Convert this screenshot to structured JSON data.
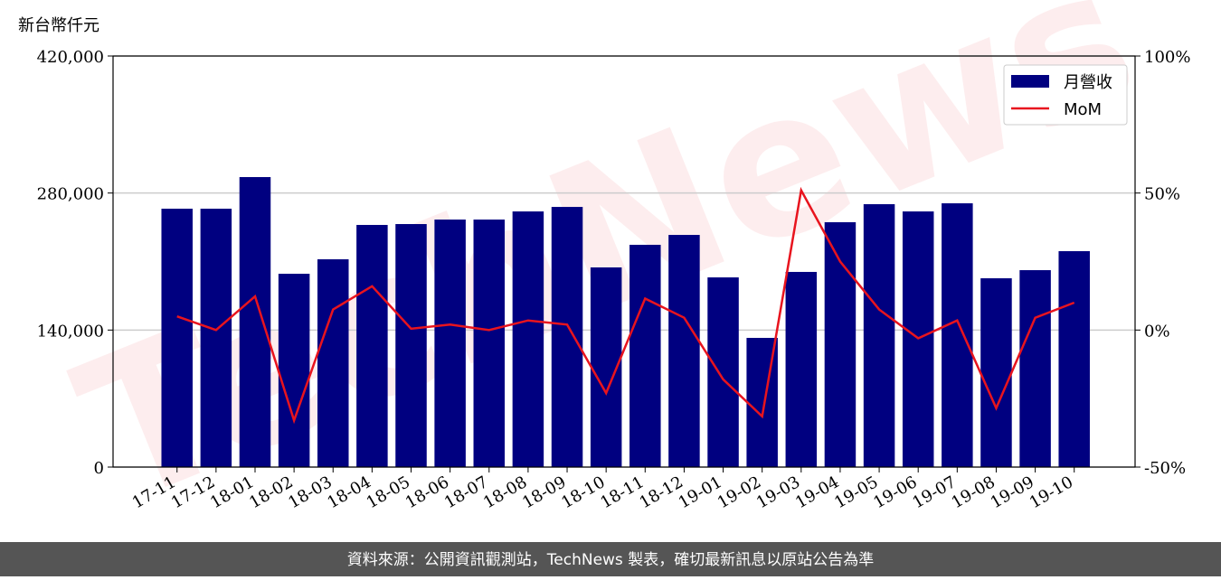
{
  "chart_data": {
    "type": "bar",
    "y_label": "新台幣仟元",
    "footer": "資料來源：公開資訊觀測站，TechNews 製表，確切最新訊息以原站公告為準",
    "watermark": "TechNews",
    "categories": [
      "17-11",
      "17-12",
      "18-01",
      "18-02",
      "18-03",
      "18-04",
      "18-05",
      "18-06",
      "18-07",
      "18-08",
      "18-09",
      "18-10",
      "18-11",
      "18-12",
      "19-01",
      "19-02",
      "19-03",
      "19-04",
      "19-05",
      "19-06",
      "19-07",
      "19-08",
      "19-09",
      "19-10"
    ],
    "series": [
      {
        "name": "月營收",
        "type": "bar",
        "axis": "y",
        "color": "#000080",
        "values": [
          264000,
          264000,
          296300,
          197500,
          212300,
          247400,
          248300,
          252900,
          252900,
          261200,
          265800,
          204000,
          227100,
          237200,
          193800,
          132000,
          199400,
          250200,
          268600,
          261200,
          269500,
          192900,
          201200,
          220600
        ]
      },
      {
        "name": "MoM",
        "type": "line",
        "axis": "y2",
        "color": "#e8141e",
        "values": [
          5,
          0,
          12.3,
          -33,
          7.5,
          16,
          0.5,
          2,
          0,
          3.5,
          2,
          -23,
          11.5,
          4.5,
          -18,
          -31.5,
          51,
          25,
          7.5,
          -3,
          3.5,
          -28.5,
          4.5,
          10
        ]
      }
    ],
    "ylim": [
      0,
      420000
    ],
    "yticks": [
      0,
      {
        "value": 140000,
        "label": "140,000"
      },
      {
        "value": 280000,
        "label": "280,000"
      },
      {
        "value": 420000,
        "label": "420,000"
      }
    ],
    "y2lim": [
      -50,
      100
    ],
    "y2ticks": [
      {
        "value": -50,
        "label": "-50%"
      },
      {
        "value": 0,
        "label": "0%"
      },
      {
        "value": 50,
        "label": "50%"
      },
      {
        "value": 100,
        "label": "100%"
      }
    ],
    "grid": true,
    "legend": "upper right"
  }
}
